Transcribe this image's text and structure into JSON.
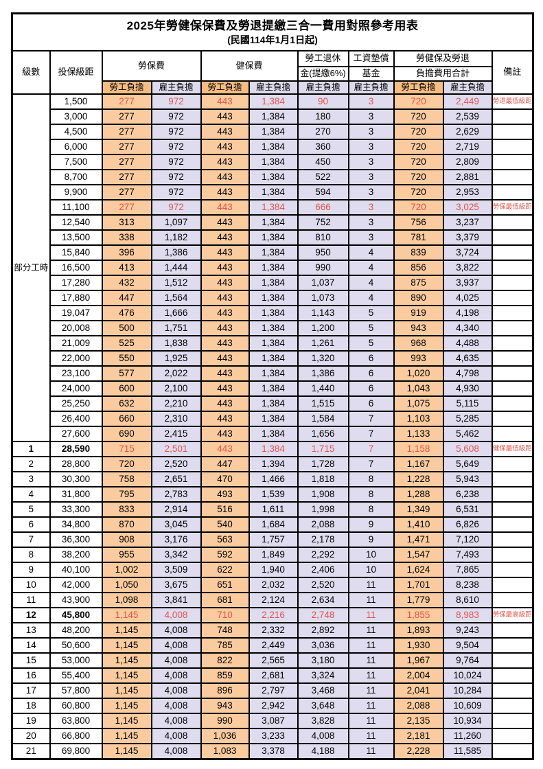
{
  "title": "2025年勞健保保費及勞退提繳三合一費用對照參考用表",
  "subtitle": "(民國114年1月1日起)",
  "header": {
    "level": "級數",
    "bracket": "投保級距",
    "labor": "勞保費",
    "health": "健保費",
    "pension_line1": "勞工退休",
    "pension_line2": "金(提繳6%)",
    "wage_line1": "工資墊償",
    "wage_line2": "基金",
    "total_line1": "勞健保及勞退",
    "total_line2": "負擔費用合計",
    "employee": "勞工負擔",
    "employer": "雇主負擔",
    "remark": "備註"
  },
  "part_time_label": "部分工時",
  "part_time_rowspan": 23,
  "colors": {
    "employee_bg": "#F9CB9E",
    "employer_bg": "#DEDCEE",
    "employee_header_bg": "#F7BC82",
    "employer_header_bg": "#DCDAEC",
    "highlight_text": "#E4544C",
    "border": "#000000"
  },
  "rows": [
    {
      "level": "",
      "bracket": "1,500",
      "labor_emp": "277",
      "labor_er": "972",
      "health_emp": "443",
      "health_er": "1,384",
      "pension_er": "90",
      "wage_er": "3",
      "total_emp": "720",
      "total_er": "2,449",
      "remark": "勞退最低級距",
      "highlight": true
    },
    {
      "level": "",
      "bracket": "3,000",
      "labor_emp": "277",
      "labor_er": "972",
      "health_emp": "443",
      "health_er": "1,384",
      "pension_er": "180",
      "wage_er": "3",
      "total_emp": "720",
      "total_er": "2,539"
    },
    {
      "level": "",
      "bracket": "4,500",
      "labor_emp": "277",
      "labor_er": "972",
      "health_emp": "443",
      "health_er": "1,384",
      "pension_er": "270",
      "wage_er": "3",
      "total_emp": "720",
      "total_er": "2,629"
    },
    {
      "level": "",
      "bracket": "6,000",
      "labor_emp": "277",
      "labor_er": "972",
      "health_emp": "443",
      "health_er": "1,384",
      "pension_er": "360",
      "wage_er": "3",
      "total_emp": "720",
      "total_er": "2,719"
    },
    {
      "level": "",
      "bracket": "7,500",
      "labor_emp": "277",
      "labor_er": "972",
      "health_emp": "443",
      "health_er": "1,384",
      "pension_er": "450",
      "wage_er": "3",
      "total_emp": "720",
      "total_er": "2,809"
    },
    {
      "level": "",
      "bracket": "8,700",
      "labor_emp": "277",
      "labor_er": "972",
      "health_emp": "443",
      "health_er": "1,384",
      "pension_er": "522",
      "wage_er": "3",
      "total_emp": "720",
      "total_er": "2,881"
    },
    {
      "level": "",
      "bracket": "9,900",
      "labor_emp": "277",
      "labor_er": "972",
      "health_emp": "443",
      "health_er": "1,384",
      "pension_er": "594",
      "wage_er": "3",
      "total_emp": "720",
      "total_er": "2,953"
    },
    {
      "level": "",
      "bracket": "11,100",
      "labor_emp": "277",
      "labor_er": "972",
      "health_emp": "443",
      "health_er": "1,384",
      "pension_er": "666",
      "wage_er": "3",
      "total_emp": "720",
      "total_er": "3,025",
      "remark": "勞保最低級距",
      "highlight": true
    },
    {
      "level": "",
      "bracket": "12,540",
      "labor_emp": "313",
      "labor_er": "1,097",
      "health_emp": "443",
      "health_er": "1,384",
      "pension_er": "752",
      "wage_er": "3",
      "total_emp": "756",
      "total_er": "3,237"
    },
    {
      "level": "",
      "bracket": "13,500",
      "labor_emp": "338",
      "labor_er": "1,182",
      "health_emp": "443",
      "health_er": "1,384",
      "pension_er": "810",
      "wage_er": "3",
      "total_emp": "781",
      "total_er": "3,379"
    },
    {
      "level": "",
      "bracket": "15,840",
      "labor_emp": "396",
      "labor_er": "1,386",
      "health_emp": "443",
      "health_er": "1,384",
      "pension_er": "950",
      "wage_er": "4",
      "total_emp": "839",
      "total_er": "3,724"
    },
    {
      "level": "",
      "bracket": "16,500",
      "labor_emp": "413",
      "labor_er": "1,444",
      "health_emp": "443",
      "health_er": "1,384",
      "pension_er": "990",
      "wage_er": "4",
      "total_emp": "856",
      "total_er": "3,822"
    },
    {
      "level": "",
      "bracket": "17,280",
      "labor_emp": "432",
      "labor_er": "1,512",
      "health_emp": "443",
      "health_er": "1,384",
      "pension_er": "1,037",
      "wage_er": "4",
      "total_emp": "875",
      "total_er": "3,937"
    },
    {
      "level": "",
      "bracket": "17,880",
      "labor_emp": "447",
      "labor_er": "1,564",
      "health_emp": "443",
      "health_er": "1,384",
      "pension_er": "1,073",
      "wage_er": "4",
      "total_emp": "890",
      "total_er": "4,025"
    },
    {
      "level": "",
      "bracket": "19,047",
      "labor_emp": "476",
      "labor_er": "1,666",
      "health_emp": "443",
      "health_er": "1,384",
      "pension_er": "1,143",
      "wage_er": "5",
      "total_emp": "919",
      "total_er": "4,198"
    },
    {
      "level": "",
      "bracket": "20,008",
      "labor_emp": "500",
      "labor_er": "1,751",
      "health_emp": "443",
      "health_er": "1,384",
      "pension_er": "1,200",
      "wage_er": "5",
      "total_emp": "943",
      "total_er": "4,340"
    },
    {
      "level": "",
      "bracket": "21,009",
      "labor_emp": "525",
      "labor_er": "1,838",
      "health_emp": "443",
      "health_er": "1,384",
      "pension_er": "1,261",
      "wage_er": "5",
      "total_emp": "968",
      "total_er": "4,488"
    },
    {
      "level": "",
      "bracket": "22,000",
      "labor_emp": "550",
      "labor_er": "1,925",
      "health_emp": "443",
      "health_er": "1,384",
      "pension_er": "1,320",
      "wage_er": "6",
      "total_emp": "993",
      "total_er": "4,635"
    },
    {
      "level": "",
      "bracket": "23,100",
      "labor_emp": "577",
      "labor_er": "2,022",
      "health_emp": "443",
      "health_er": "1,384",
      "pension_er": "1,386",
      "wage_er": "6",
      "total_emp": "1,020",
      "total_er": "4,798"
    },
    {
      "level": "",
      "bracket": "24,000",
      "labor_emp": "600",
      "labor_er": "2,100",
      "health_emp": "443",
      "health_er": "1,384",
      "pension_er": "1,440",
      "wage_er": "6",
      "total_emp": "1,043",
      "total_er": "4,930"
    },
    {
      "level": "",
      "bracket": "25,250",
      "labor_emp": "632",
      "labor_er": "2,210",
      "health_emp": "443",
      "health_er": "1,384",
      "pension_er": "1,515",
      "wage_er": "6",
      "total_emp": "1,075",
      "total_er": "5,115"
    },
    {
      "level": "",
      "bracket": "26,400",
      "labor_emp": "660",
      "labor_er": "2,310",
      "health_emp": "443",
      "health_er": "1,384",
      "pension_er": "1,584",
      "wage_er": "7",
      "total_emp": "1,103",
      "total_er": "5,285"
    },
    {
      "level": "",
      "bracket": "27,600",
      "labor_emp": "690",
      "labor_er": "2,415",
      "health_emp": "443",
      "health_er": "1,384",
      "pension_er": "1,656",
      "wage_er": "7",
      "total_emp": "1,133",
      "total_er": "5,462"
    },
    {
      "level": "1",
      "bracket": "28,590",
      "labor_emp": "715",
      "labor_er": "2,501",
      "health_emp": "443",
      "health_er": "1,384",
      "pension_er": "1,715",
      "wage_er": "7",
      "total_emp": "1,158",
      "total_er": "5,608",
      "remark": "健保最低級距",
      "highlight": true,
      "bold": true
    },
    {
      "level": "2",
      "bracket": "28,800",
      "labor_emp": "720",
      "labor_er": "2,520",
      "health_emp": "447",
      "health_er": "1,394",
      "pension_er": "1,728",
      "wage_er": "7",
      "total_emp": "1,167",
      "total_er": "5,649"
    },
    {
      "level": "3",
      "bracket": "30,300",
      "labor_emp": "758",
      "labor_er": "2,651",
      "health_emp": "470",
      "health_er": "1,466",
      "pension_er": "1,818",
      "wage_er": "8",
      "total_emp": "1,228",
      "total_er": "5,943"
    },
    {
      "level": "4",
      "bracket": "31,800",
      "labor_emp": "795",
      "labor_er": "2,783",
      "health_emp": "493",
      "health_er": "1,539",
      "pension_er": "1,908",
      "wage_er": "8",
      "total_emp": "1,288",
      "total_er": "6,238"
    },
    {
      "level": "5",
      "bracket": "33,300",
      "labor_emp": "833",
      "labor_er": "2,914",
      "health_emp": "516",
      "health_er": "1,611",
      "pension_er": "1,998",
      "wage_er": "8",
      "total_emp": "1,349",
      "total_er": "6,531"
    },
    {
      "level": "6",
      "bracket": "34,800",
      "labor_emp": "870",
      "labor_er": "3,045",
      "health_emp": "540",
      "health_er": "1,684",
      "pension_er": "2,088",
      "wage_er": "9",
      "total_emp": "1,410",
      "total_er": "6,826"
    },
    {
      "level": "7",
      "bracket": "36,300",
      "labor_emp": "908",
      "labor_er": "3,176",
      "health_emp": "563",
      "health_er": "1,757",
      "pension_er": "2,178",
      "wage_er": "9",
      "total_emp": "1,471",
      "total_er": "7,120"
    },
    {
      "level": "8",
      "bracket": "38,200",
      "labor_emp": "955",
      "labor_er": "3,342",
      "health_emp": "592",
      "health_er": "1,849",
      "pension_er": "2,292",
      "wage_er": "10",
      "total_emp": "1,547",
      "total_er": "7,493"
    },
    {
      "level": "9",
      "bracket": "40,100",
      "labor_emp": "1,002",
      "labor_er": "3,509",
      "health_emp": "622",
      "health_er": "1,940",
      "pension_er": "2,406",
      "wage_er": "10",
      "total_emp": "1,624",
      "total_er": "7,865"
    },
    {
      "level": "10",
      "bracket": "42,000",
      "labor_emp": "1,050",
      "labor_er": "3,675",
      "health_emp": "651",
      "health_er": "2,032",
      "pension_er": "2,520",
      "wage_er": "11",
      "total_emp": "1,701",
      "total_er": "8,238"
    },
    {
      "level": "11",
      "bracket": "43,900",
      "labor_emp": "1,098",
      "labor_er": "3,841",
      "health_emp": "681",
      "health_er": "2,124",
      "pension_er": "2,634",
      "wage_er": "11",
      "total_emp": "1,779",
      "total_er": "8,610"
    },
    {
      "level": "12",
      "bracket": "45,800",
      "labor_emp": "1,145",
      "labor_er": "4,008",
      "health_emp": "710",
      "health_er": "2,216",
      "pension_er": "2,748",
      "wage_er": "11",
      "total_emp": "1,855",
      "total_er": "8,983",
      "remark": "勞保最高級距",
      "highlight": true,
      "bold": true
    },
    {
      "level": "13",
      "bracket": "48,200",
      "labor_emp": "1,145",
      "labor_er": "4,008",
      "health_emp": "748",
      "health_er": "2,332",
      "pension_er": "2,892",
      "wage_er": "11",
      "total_emp": "1,893",
      "total_er": "9,243"
    },
    {
      "level": "14",
      "bracket": "50,600",
      "labor_emp": "1,145",
      "labor_er": "4,008",
      "health_emp": "785",
      "health_er": "2,449",
      "pension_er": "3,036",
      "wage_er": "11",
      "total_emp": "1,930",
      "total_er": "9,504"
    },
    {
      "level": "15",
      "bracket": "53,000",
      "labor_emp": "1,145",
      "labor_er": "4,008",
      "health_emp": "822",
      "health_er": "2,565",
      "pension_er": "3,180",
      "wage_er": "11",
      "total_emp": "1,967",
      "total_er": "9,764"
    },
    {
      "level": "16",
      "bracket": "55,400",
      "labor_emp": "1,145",
      "labor_er": "4,008",
      "health_emp": "859",
      "health_er": "2,681",
      "pension_er": "3,324",
      "wage_er": "11",
      "total_emp": "2,004",
      "total_er": "10,024"
    },
    {
      "level": "17",
      "bracket": "57,800",
      "labor_emp": "1,145",
      "labor_er": "4,008",
      "health_emp": "896",
      "health_er": "2,797",
      "pension_er": "3,468",
      "wage_er": "11",
      "total_emp": "2,041",
      "total_er": "10,284"
    },
    {
      "level": "18",
      "bracket": "60,800",
      "labor_emp": "1,145",
      "labor_er": "4,008",
      "health_emp": "943",
      "health_er": "2,942",
      "pension_er": "3,648",
      "wage_er": "11",
      "total_emp": "2,088",
      "total_er": "10,609"
    },
    {
      "level": "19",
      "bracket": "63,800",
      "labor_emp": "1,145",
      "labor_er": "4,008",
      "health_emp": "990",
      "health_er": "3,087",
      "pension_er": "3,828",
      "wage_er": "11",
      "total_emp": "2,135",
      "total_er": "10,934"
    },
    {
      "level": "20",
      "bracket": "66,800",
      "labor_emp": "1,145",
      "labor_er": "4,008",
      "health_emp": "1,036",
      "health_er": "3,233",
      "pension_er": "4,008",
      "wage_er": "11",
      "total_emp": "2,181",
      "total_er": "11,260"
    },
    {
      "level": "21",
      "bracket": "69,800",
      "labor_emp": "1,145",
      "labor_er": "4,008",
      "health_emp": "1,083",
      "health_er": "3,378",
      "pension_er": "4,188",
      "wage_er": "11",
      "total_emp": "2,228",
      "total_er": "11,585"
    }
  ]
}
